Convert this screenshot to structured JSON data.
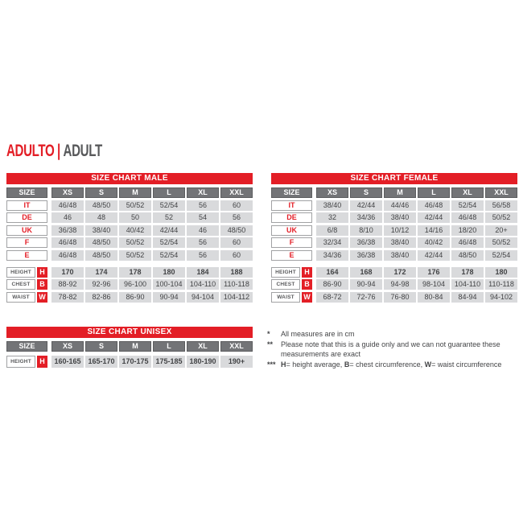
{
  "page_title": {
    "primary": "ADULTO",
    "separator": "|",
    "secondary": "ADULT"
  },
  "colors": {
    "red": "#e31e26",
    "header_gray": "#737477",
    "cell_gray": "#d9dadc",
    "text_gray": "#434446",
    "title_gray": "#58595b"
  },
  "tables": {
    "male": {
      "title": "SIZE CHART MALE",
      "size_label": "SIZE",
      "columns": [
        "XS",
        "S",
        "M",
        "L",
        "XL",
        "XXL"
      ],
      "rows": [
        {
          "label": "IT",
          "values": [
            "46/48",
            "48/50",
            "50/52",
            "52/54",
            "56",
            "60"
          ]
        },
        {
          "label": "DE",
          "values": [
            "46",
            "48",
            "50",
            "52",
            "54",
            "56"
          ]
        },
        {
          "label": "UK",
          "values": [
            "36/38",
            "38/40",
            "40/42",
            "42/44",
            "46",
            "48/50"
          ]
        },
        {
          "label": "F",
          "values": [
            "46/48",
            "48/50",
            "50/52",
            "52/54",
            "56",
            "60"
          ]
        },
        {
          "label": "E",
          "values": [
            "46/48",
            "48/50",
            "50/52",
            "52/54",
            "56",
            "60"
          ]
        }
      ],
      "measure_rows": [
        {
          "label": "HEIGHT",
          "badge": "H",
          "bold": true,
          "values": [
            "170",
            "174",
            "178",
            "180",
            "184",
            "188"
          ]
        },
        {
          "label": "CHEST",
          "badge": "B",
          "bold": false,
          "values": [
            "88-92",
            "92-96",
            "96-100",
            "100-104",
            "104-110",
            "110-118"
          ]
        },
        {
          "label": "WAIST",
          "badge": "W",
          "bold": false,
          "values": [
            "78-82",
            "82-86",
            "86-90",
            "90-94",
            "94-104",
            "104-112"
          ]
        }
      ]
    },
    "female": {
      "title": "SIZE CHART FEMALE",
      "size_label": "SIZE",
      "columns": [
        "XS",
        "S",
        "M",
        "L",
        "XL",
        "XXL"
      ],
      "rows": [
        {
          "label": "IT",
          "values": [
            "38/40",
            "42/44",
            "44/46",
            "46/48",
            "52/54",
            "56/58"
          ]
        },
        {
          "label": "DE",
          "values": [
            "32",
            "34/36",
            "38/40",
            "42/44",
            "46/48",
            "50/52"
          ]
        },
        {
          "label": "UK",
          "values": [
            "6/8",
            "8/10",
            "10/12",
            "14/16",
            "18/20",
            "20+"
          ]
        },
        {
          "label": "F",
          "values": [
            "32/34",
            "36/38",
            "38/40",
            "40/42",
            "46/48",
            "50/52"
          ]
        },
        {
          "label": "E",
          "values": [
            "34/36",
            "36/38",
            "38/40",
            "42/44",
            "48/50",
            "52/54"
          ]
        }
      ],
      "measure_rows": [
        {
          "label": "HEIGHT",
          "badge": "H",
          "bold": true,
          "values": [
            "164",
            "168",
            "172",
            "176",
            "178",
            "180"
          ]
        },
        {
          "label": "CHEST",
          "badge": "B",
          "bold": false,
          "values": [
            "86-90",
            "90-94",
            "94-98",
            "98-104",
            "104-110",
            "110-118"
          ]
        },
        {
          "label": "WAIST",
          "badge": "W",
          "bold": false,
          "values": [
            "68-72",
            "72-76",
            "76-80",
            "80-84",
            "84-94",
            "94-102"
          ]
        }
      ]
    },
    "unisex": {
      "title": "SIZE CHART UNISEX",
      "size_label": "SIZE",
      "tall": true,
      "columns": [
        "XS",
        "S",
        "M",
        "L",
        "XL",
        "XXL"
      ],
      "rows": [],
      "measure_rows": [
        {
          "label": "HEIGHT",
          "badge": "H",
          "bold": true,
          "values": [
            "160-165",
            "165-170",
            "170-175",
            "175-185",
            "180-190",
            "190+"
          ]
        }
      ]
    }
  },
  "footnotes": [
    {
      "marker": "*",
      "segments": [
        {
          "t": "All measures are in cm"
        }
      ]
    },
    {
      "marker": "**",
      "segments": [
        {
          "t": "Please note that this is a guide only and we can not guarantee these measurements are exact"
        }
      ]
    },
    {
      "marker": "***",
      "segments": [
        {
          "b": "H"
        },
        {
          "t": "= height average, "
        },
        {
          "b": "B"
        },
        {
          "t": "= chest circumference, "
        },
        {
          "b": "W"
        },
        {
          "t": "= waist circumference"
        }
      ]
    }
  ]
}
